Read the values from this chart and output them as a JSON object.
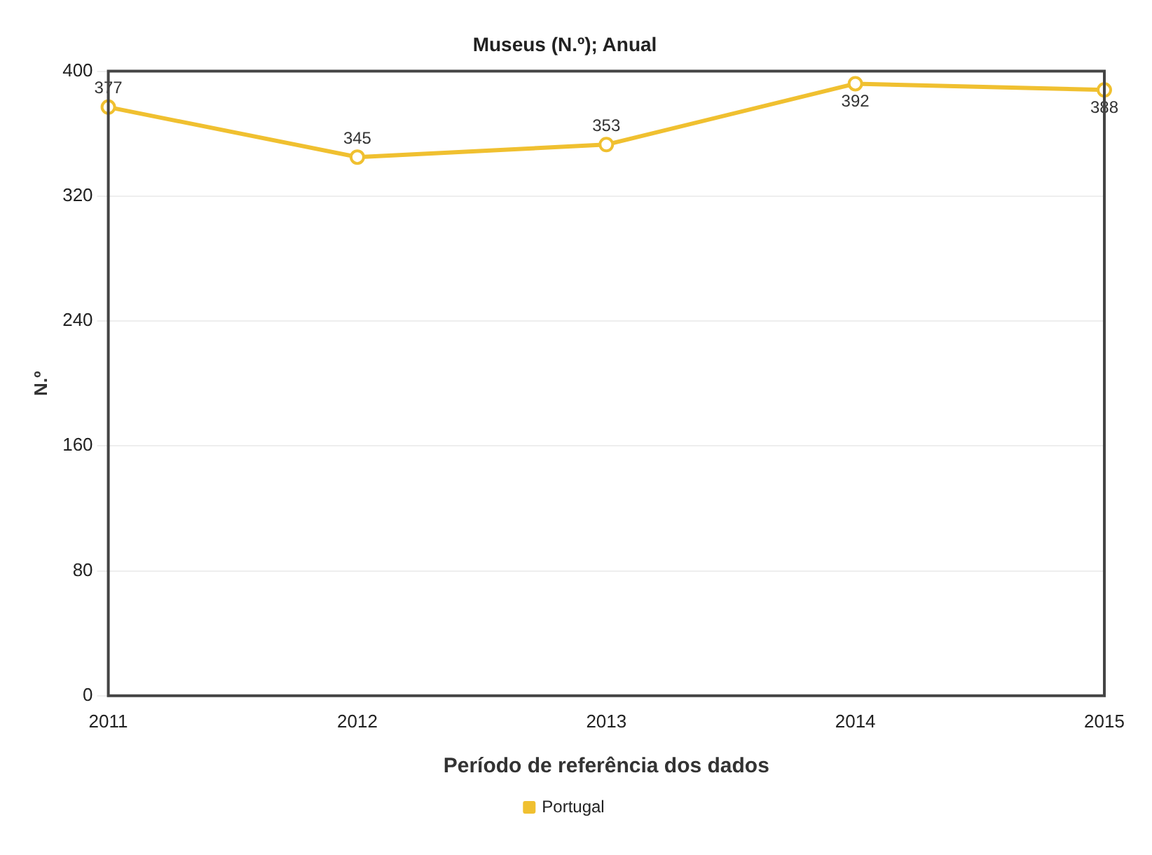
{
  "chart_data": {
    "type": "line",
    "title": "Museus (N.º); Anual",
    "xlabel": "Período de referência dos dados",
    "ylabel": "N.º",
    "categories": [
      "2011",
      "2012",
      "2013",
      "2014",
      "2015"
    ],
    "series": [
      {
        "name": "Portugal",
        "color": "#f0c030",
        "values": [
          377,
          345,
          353,
          392,
          388
        ]
      }
    ],
    "ylim": [
      0,
      400
    ],
    "yticks": [
      0,
      80,
      160,
      240,
      320,
      400
    ],
    "grid": "y",
    "legend": "bottom",
    "marker": "circle",
    "line_style": "solid",
    "data_labels": true
  }
}
